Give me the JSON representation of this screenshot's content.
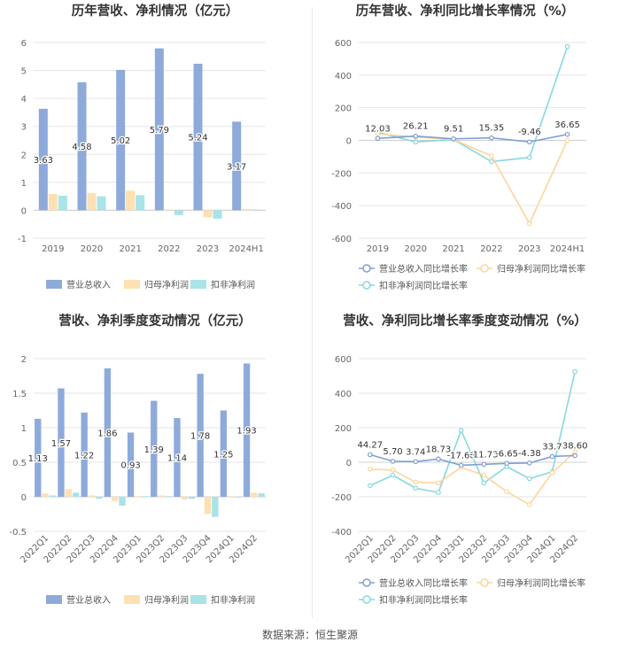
{
  "colors": {
    "revenue": "#8eaadb",
    "net_profit": "#ffe0b2",
    "deducted_profit": "#a8e4e8",
    "revenue_line": "#7f9fd6",
    "net_profit_line": "#ffd59a",
    "deducted_profit_line": "#86d9e0",
    "grid": "#e6e6e6",
    "axis_text": "#666666"
  },
  "source": "数据来源：恒生聚源",
  "chart_data": [
    {
      "type": "bar",
      "title": "历年营收、净利情况（亿元）",
      "categories": [
        "2019",
        "2020",
        "2021",
        "2022",
        "2023",
        "2024H1"
      ],
      "ylim": [
        -1,
        6
      ],
      "yticks": [
        "-1",
        "0",
        "1",
        "2",
        "3",
        "4",
        "5",
        "6"
      ],
      "series": [
        {
          "name": "营业总收入",
          "values": [
            3.63,
            4.58,
            5.02,
            5.79,
            5.24,
            3.17
          ],
          "labels": [
            "3.63",
            "4.58",
            "5.02",
            "5.79",
            "5.24",
            "3.17"
          ]
        },
        {
          "name": "归母净利润",
          "values": [
            0.58,
            0.62,
            0.7,
            0.03,
            -0.25,
            0.05
          ]
        },
        {
          "name": "扣非净利润",
          "values": [
            0.52,
            0.5,
            0.54,
            -0.17,
            -0.3,
            0.03
          ]
        }
      ],
      "legend": "bottom"
    },
    {
      "type": "line",
      "title": "历年营收、净利同比增长率情况（%）",
      "categories": [
        "2019",
        "2020",
        "2021",
        "2022",
        "2023",
        "2024H1"
      ],
      "ylim": [
        -600,
        600
      ],
      "yticks": [
        "-600",
        "-400",
        "-200",
        "0",
        "200",
        "400",
        "600"
      ],
      "series": [
        {
          "name": "营业总收入同比增长率",
          "values": [
            12.03,
            26.21,
            9.51,
            15.35,
            -9.46,
            36.65
          ],
          "labels": [
            "12.03",
            "26.21",
            "9.51",
            "15.35",
            "-9.46",
            "36.65"
          ]
        },
        {
          "name": "归母净利润同比增长率",
          "values": [
            40,
            20,
            5,
            -95,
            -510,
            0
          ]
        },
        {
          "name": "扣非净利润同比增长率",
          "values": [
            50,
            -10,
            5,
            -130,
            -105,
            575
          ]
        }
      ],
      "legend": "bottom"
    },
    {
      "type": "bar",
      "title": "营收、净利季度变动情况（亿元）",
      "categories": [
        "2022Q1",
        "2022Q2",
        "2022Q3",
        "2022Q4",
        "2023Q1",
        "2023Q2",
        "2023Q3",
        "2023Q4",
        "2024Q1",
        "2024Q2"
      ],
      "ylim": [
        -0.5,
        2
      ],
      "yticks": [
        "-0.5",
        "0",
        "0.5",
        "1",
        "1.5",
        "2"
      ],
      "series": [
        {
          "name": "营业总收入",
          "values": [
            1.13,
            1.57,
            1.22,
            1.86,
            0.93,
            1.39,
            1.14,
            1.78,
            1.25,
            1.93
          ],
          "labels": [
            "1.13",
            "1.57",
            "1.22",
            "1.86",
            "0.93",
            "1.39",
            "1.14",
            "1.78",
            "1.25",
            "1.93"
          ]
        },
        {
          "name": "归母净利润",
          "values": [
            0.05,
            0.11,
            0.02,
            -0.06,
            0.01,
            0.02,
            -0.04,
            -0.25,
            0.01,
            0.06
          ]
        },
        {
          "name": "扣非净利润",
          "values": [
            0.02,
            0.06,
            -0.03,
            -0.13,
            0.01,
            0.01,
            -0.03,
            -0.29,
            0.0,
            0.05
          ]
        }
      ],
      "legend": "bottom"
    },
    {
      "type": "line",
      "title": "营收、净利同比增长率季度变动情况（%）",
      "categories": [
        "2022Q1",
        "2022Q2",
        "2022Q3",
        "2022Q4",
        "2023Q1",
        "2023Q2",
        "2023Q3",
        "2023Q4",
        "2024Q1",
        "2024Q2"
      ],
      "ylim": [
        -400,
        600
      ],
      "yticks": [
        "-400",
        "-200",
        "0",
        "200",
        "400",
        "600"
      ],
      "series": [
        {
          "name": "营业总收入同比增长率",
          "values": [
            44.27,
            5.7,
            3.74,
            18.73,
            -17.68,
            -11.73,
            -6.65,
            -4.38,
            33.7,
            38.6
          ],
          "labels": [
            "44.27",
            "5.70",
            "3.74",
            "18.73",
            "-17.68",
            "-11.73",
            "-6.65",
            "-4.38",
            "33.7",
            "38.60"
          ]
        },
        {
          "name": "归母净利润同比增长率",
          "values": [
            -40,
            -45,
            -115,
            -120,
            -30,
            -75,
            -170,
            -245,
            -60,
            60
          ]
        },
        {
          "name": "扣非净利润同比增长率",
          "values": [
            -135,
            -75,
            -150,
            -175,
            185,
            -120,
            -25,
            -95,
            -55,
            525
          ]
        }
      ],
      "legend": "bottom"
    }
  ]
}
